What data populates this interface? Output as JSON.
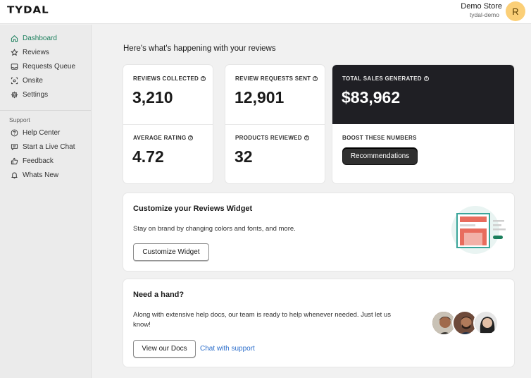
{
  "header": {
    "logo": "TYDAL",
    "store_name": "Demo Store",
    "store_handle": "tydal-demo",
    "avatar_initial": "R"
  },
  "sidebar": {
    "items": [
      {
        "label": "Dashboard",
        "icon": "home-icon",
        "active": true
      },
      {
        "label": "Reviews",
        "icon": "star-icon"
      },
      {
        "label": "Requests Queue",
        "icon": "inbox-icon"
      },
      {
        "label": "Onsite",
        "icon": "onsite-icon"
      },
      {
        "label": "Settings",
        "icon": "gear-icon"
      }
    ],
    "support_label": "Support",
    "support_items": [
      {
        "label": "Help Center",
        "icon": "question-circle-icon"
      },
      {
        "label": "Start a Live Chat",
        "icon": "chat-icon"
      },
      {
        "label": "Feedback",
        "icon": "thumbs-up-icon"
      },
      {
        "label": "Whats New",
        "icon": "bell-icon"
      }
    ]
  },
  "main": {
    "heading": "Here's what's happening with your reviews",
    "stats": {
      "reviews_collected": {
        "label": "REVIEWS COLLECTED",
        "value": "3,210"
      },
      "average_rating": {
        "label": "AVERAGE RATING",
        "value": "4.72"
      },
      "review_requests_sent": {
        "label": "REVIEW REQUESTS SENT",
        "value": "12,901"
      },
      "products_reviewed": {
        "label": "PRODUCTS REVIEWED",
        "value": "32"
      },
      "total_sales": {
        "label": "TOTAL SALES GENERATED",
        "value": "$83,962"
      }
    },
    "boost": {
      "label": "BOOST THESE NUMBERS",
      "button": "Recommendations"
    },
    "widget_card": {
      "title": "Customize your Reviews Widget",
      "text": "Stay on brand by changing colors and fonts, and more.",
      "button": "Customize Widget"
    },
    "help_card": {
      "title": "Need a hand?",
      "text_line1": "Along with extensive help docs, our team is ready to help whenever needed. Just let us",
      "text_line2": "know!",
      "button": "View our Docs",
      "link": "Chat with support"
    }
  },
  "colors": {
    "accent_green": "#1b7f5c",
    "dark_card": "#1f1f24",
    "link_blue": "#2c6ecb",
    "avatar_bg": "#fbcf77"
  }
}
